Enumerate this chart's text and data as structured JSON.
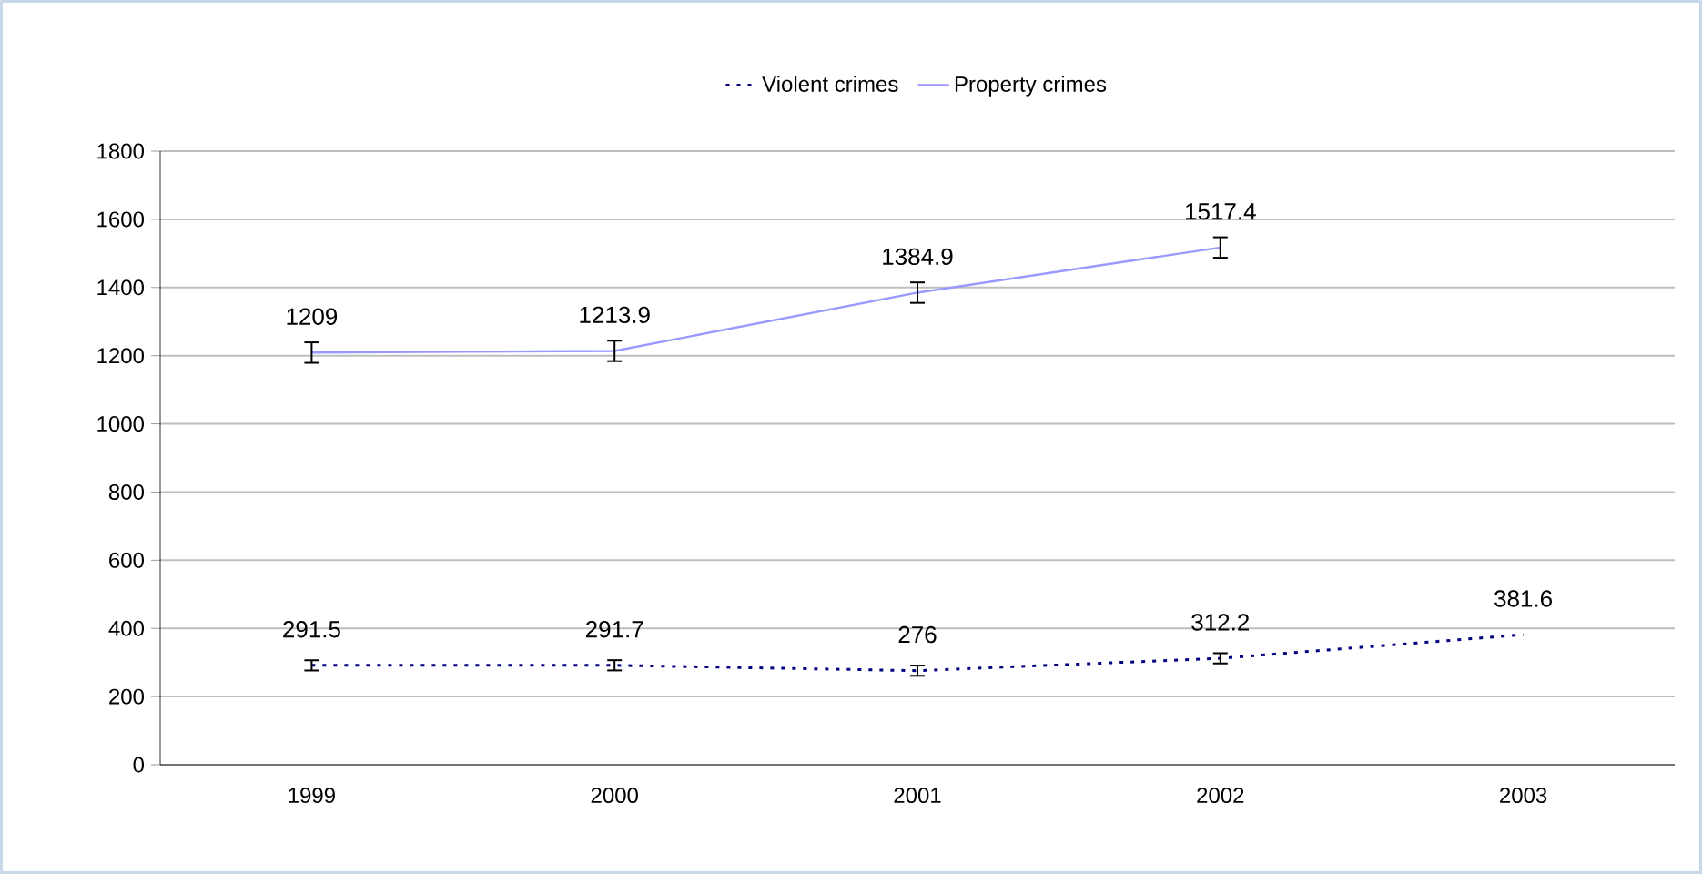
{
  "chart_data": {
    "type": "line",
    "categories": [
      "1999",
      "2000",
      "2001",
      "2002",
      "2003"
    ],
    "series": [
      {
        "name": "Violent crimes",
        "color": "#000080",
        "line_style": "dotted",
        "values": [
          291.5,
          291.7,
          276,
          312.2,
          381.6
        ],
        "errors": [
          15,
          15,
          15,
          15,
          null
        ]
      },
      {
        "name": "Property crimes",
        "color": "#9999ff",
        "line_style": "solid",
        "values": [
          1209,
          1213.9,
          1384.9,
          1517.4,
          null
        ],
        "errors": [
          30,
          30,
          30,
          30,
          null
        ]
      }
    ],
    "ylim": [
      0,
      1800
    ],
    "yticks": [
      0,
      200,
      400,
      600,
      800,
      1000,
      1200,
      1400,
      1600,
      1800
    ],
    "grid": "y",
    "legend": "top",
    "data_labels": true,
    "marker": "none"
  }
}
